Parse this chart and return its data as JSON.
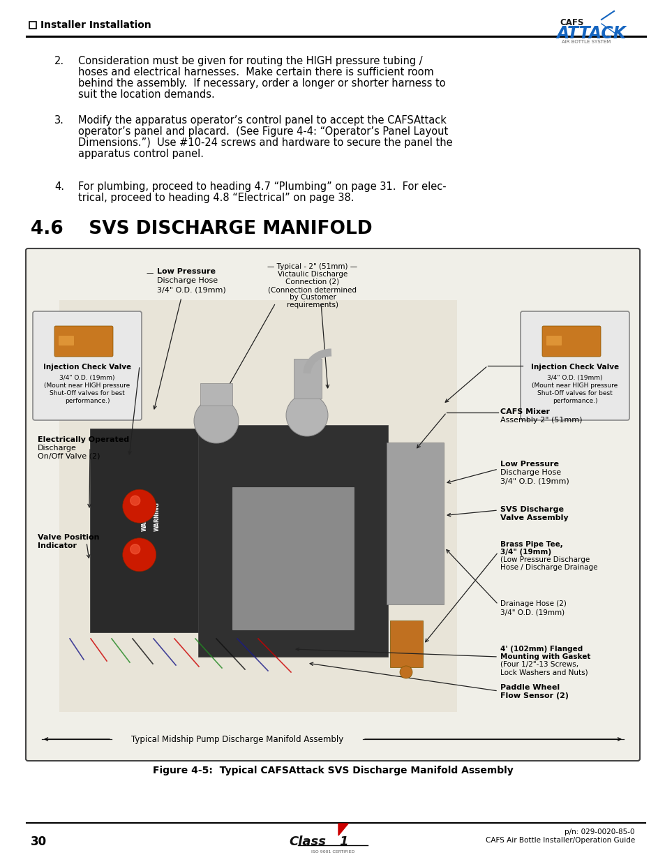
{
  "page_bg": "#ffffff",
  "header_text": "Installer Installation",
  "section_heading": "4.6    SVS DISCHARGE MANIFOLD",
  "item2_number": "2.",
  "item2_lines": [
    "Consideration must be given for routing the HIGH pressure tubing /",
    "hoses and electrical harnesses.  Make certain there is sufficient room",
    "behind the assembly.  If necessary, order a longer or shorter harness to",
    "suit the location demands."
  ],
  "item3_number": "3.",
  "item3_lines": [
    "Modify the apparatus operator’s control panel to accept the CAFSAttack",
    "operator’s panel and placard.  (See Figure 4-4: “Operator’s Panel Layout",
    "Dimensions.”)  Use #10-24 screws and hardware to secure the panel the",
    "apparatus control panel."
  ],
  "item4_number": "4.",
  "item4_lines": [
    "For plumbing, proceed to heading 4.7 “Plumbing” on page 31.  For elec-",
    "trical, proceed to heading 4.8 “Electrical” on page 38."
  ],
  "figure_caption": "Figure 4-5:  Typical CAFSAttack SVS Discharge Manifold Assembly",
  "footer_page": "30",
  "footer_right1": "CAFS Air Bottle Installer/Operation Guide",
  "footer_right2": "p/n: 029-0020-85-0",
  "label_top_center_lines": [
    "Typical - 2\" (51mm)",
    "Victaulic Discharge",
    "Connection (2)",
    "(Connection determined",
    "by Customer",
    "requirements)"
  ],
  "label_top_left_lines": [
    "Low Pressure",
    "Discharge Hose",
    "3/4\" O.D. (19mm)"
  ],
  "label_left_icv_title": "Injection Check Valve",
  "label_left_icv_lines": [
    "3/4\" O.D. (19mm)",
    "(Mount near HIGH pressure",
    "Shut-Off valves for best",
    "performance.)"
  ],
  "label_elec_lines": [
    "Electrically Operated",
    "Discharge",
    "On/Off Valve (2)"
  ],
  "label_valve_pos_lines": [
    "Valve Position",
    "Indicator"
  ],
  "label_right_icv_title": "Injection Check Valve",
  "label_right_icv_lines": [
    "3/4\" O.D. (19mm)",
    "(Mount near HIGH pressure",
    "Shut-Off valves for best",
    "performance.)"
  ],
  "label_cafs_mixer_lines": [
    "CAFS Mixer",
    "Assembly 2\" (51mm)"
  ],
  "label_lp_hose_r_lines": [
    "Low Pressure",
    "Discharge Hose",
    "3/4\" O.D. (19mm)"
  ],
  "label_brass_lines": [
    "Brass Pipe Tee,",
    "3/4\" (19mm)",
    "(Low Pressure Discharge",
    "Hose / Discharge Drainage"
  ],
  "label_drain_lines": [
    "Drainage Hose (2)",
    "3/4\" O.D. (19mm)"
  ],
  "label_svs_lines": [
    "SVS Discharge",
    "Valve Assembly"
  ],
  "label_flange_lines": [
    "4' (102mm) Flanged",
    "Mounting with Gasket",
    "(Four 1/2\"-13 Screws,",
    "Lock Washers and Nuts)"
  ],
  "label_paddle_lines": [
    "Paddle Wheel",
    "Flow Sensor (2)"
  ],
  "label_bot": "Typical Midship Pump Discharge Manifold Assembly",
  "pump_bg": "#d8d8c8",
  "diag_border": "#555555",
  "text_color": "#000000",
  "body_fontsize": 10.5,
  "heading_fontsize": 19,
  "header_fontsize": 10,
  "label_fontsize": 8.0,
  "small_label_fontsize": 7.5
}
